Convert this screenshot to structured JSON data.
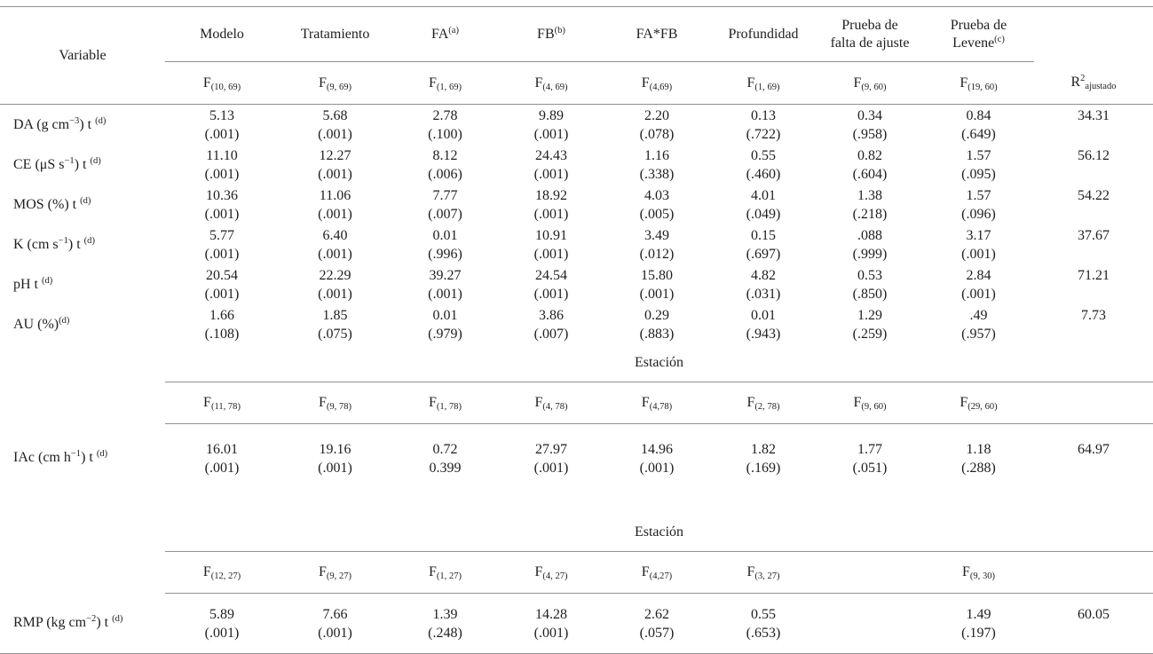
{
  "table": {
    "variable_header": "Variable",
    "column_headers": [
      "Modelo",
      "Tratamiento",
      "FA^{(a)}",
      "FB^{(b)}",
      "FA*FB",
      "Profundidad",
      "Prueba de falta de ajuste",
      "Prueba de Levene^{(c)}",
      ""
    ],
    "sections": [
      {
        "divider": null,
        "f_row": [
          "F_{(10, 69)}",
          "F_{(9, 69)}",
          "F_{(1, 69)}",
          "F_{(4, 69)}",
          "F_{(4,69)}",
          "F_{(1, 69)}",
          "F_{(9, 60)}",
          "F_{(19, 60)}",
          "R^{2}_{ajustado}"
        ],
        "rows": [
          {
            "variable": "DA (g cm^{−3}) t ^{(d)}",
            "values": [
              "5.13",
              "5.68",
              "2.78",
              "9.89",
              "2.20",
              "0.13",
              "0.34",
              "0.84"
            ],
            "p_values": [
              "(.001)",
              "(.001)",
              "(.100)",
              "(.001)",
              "(.078)",
              "(.722)",
              "(.958)",
              "(.649)"
            ],
            "r2": "34.31"
          },
          {
            "variable": "CE (μS s^{−1}) t ^{(d)}",
            "values": [
              "11.10",
              "12.27",
              "8.12",
              "24.43",
              "1.16",
              "0.55",
              "0.82",
              "1.57"
            ],
            "p_values": [
              "(.001)",
              "(.001)",
              "(.006)",
              "(.001)",
              "(.338)",
              "(.460)",
              "(.604)",
              "(.095)"
            ],
            "r2": "56.12"
          },
          {
            "variable": "MOS (%) t ^{(d)}",
            "values": [
              "10.36",
              "11.06",
              "7.77",
              "18.92",
              "4.03",
              "4.01",
              "1.38",
              "1.57"
            ],
            "p_values": [
              "(.001)",
              "(.001)",
              "(.007)",
              "(.001)",
              "(.005)",
              "(.049)",
              "(.218)",
              "(.096)"
            ],
            "r2": "54.22"
          },
          {
            "variable": "K (cm s^{−1}) t ^{(d)}",
            "values": [
              "5.77",
              "6.40",
              "0.01",
              "10.91",
              "3.49",
              "0.15",
              ".088",
              "3.17"
            ],
            "p_values": [
              "(.001)",
              "(.001)",
              "(.996)",
              "(.001)",
              "(.012)",
              "(.697)",
              "(.999)",
              "(.001)"
            ],
            "r2": "37.67"
          },
          {
            "variable": "pH t ^{(d)}",
            "values": [
              "20.54",
              "22.29",
              "39.27",
              "24.54",
              "15.80",
              "4.82",
              "0.53",
              "2.84"
            ],
            "p_values": [
              "(.001)",
              "(.001)",
              "(.001)",
              "(.001)",
              "(.001)",
              "(.031)",
              "(.850)",
              "(.001)"
            ],
            "r2": "71.21"
          },
          {
            "variable": "AU (%)^{(d)}",
            "values": [
              "1.66",
              "1.85",
              "0.01",
              "3.86",
              "0.29",
              "0.01",
              "1.29",
              ".49"
            ],
            "p_values": [
              "(.108)",
              "(.075)",
              "(.979)",
              "(.007)",
              "(.883)",
              "(.943)",
              "(.259)",
              "(.957)"
            ],
            "r2": "7.73"
          }
        ]
      },
      {
        "divider": "Estación",
        "f_row": [
          "F_{(11, 78)}",
          "F_{(9, 78)}",
          "F_{(1, 78)}",
          "F_{(4, 78)}",
          "F_{(4,78)}",
          "F_{(2, 78)}",
          "F_{(9, 60)}",
          "F_{(29, 60)}",
          ""
        ],
        "rows": [
          {
            "variable": "IAc (cm h^{−1}) t ^{(d)}",
            "values": [
              "16.01",
              "19.16",
              "0.72",
              "27.97",
              "14.96",
              "1.82",
              "1.77",
              "1.18"
            ],
            "p_values": [
              "(.001)",
              "(.001)",
              "0.399",
              "(.001)",
              "(.001)",
              "(.169)",
              "(.051)",
              "(.288)"
            ],
            "r2": "64.97"
          }
        ]
      },
      {
        "divider": "Estación",
        "f_row": [
          "F_{(12, 27)}",
          "F_{(9, 27)}",
          "F_{(1, 27)}",
          "F_{(4, 27)}",
          "F_{(4,27)}",
          "F_{(3, 27)}",
          "",
          "F_{(9, 30)}",
          ""
        ],
        "rows": [
          {
            "variable": "RMP (kg cm^{−2}) t ^{(d)}",
            "values": [
              "5.89",
              "7.66",
              "1.39",
              "14.28",
              "2.62",
              "0.55",
              "",
              "1.49"
            ],
            "p_values": [
              "(.001)",
              "(.001)",
              "(.248)",
              "(.001)",
              "(.057)",
              "(.653)",
              "",
              "(.197)"
            ],
            "r2": "60.05"
          }
        ]
      }
    ]
  }
}
